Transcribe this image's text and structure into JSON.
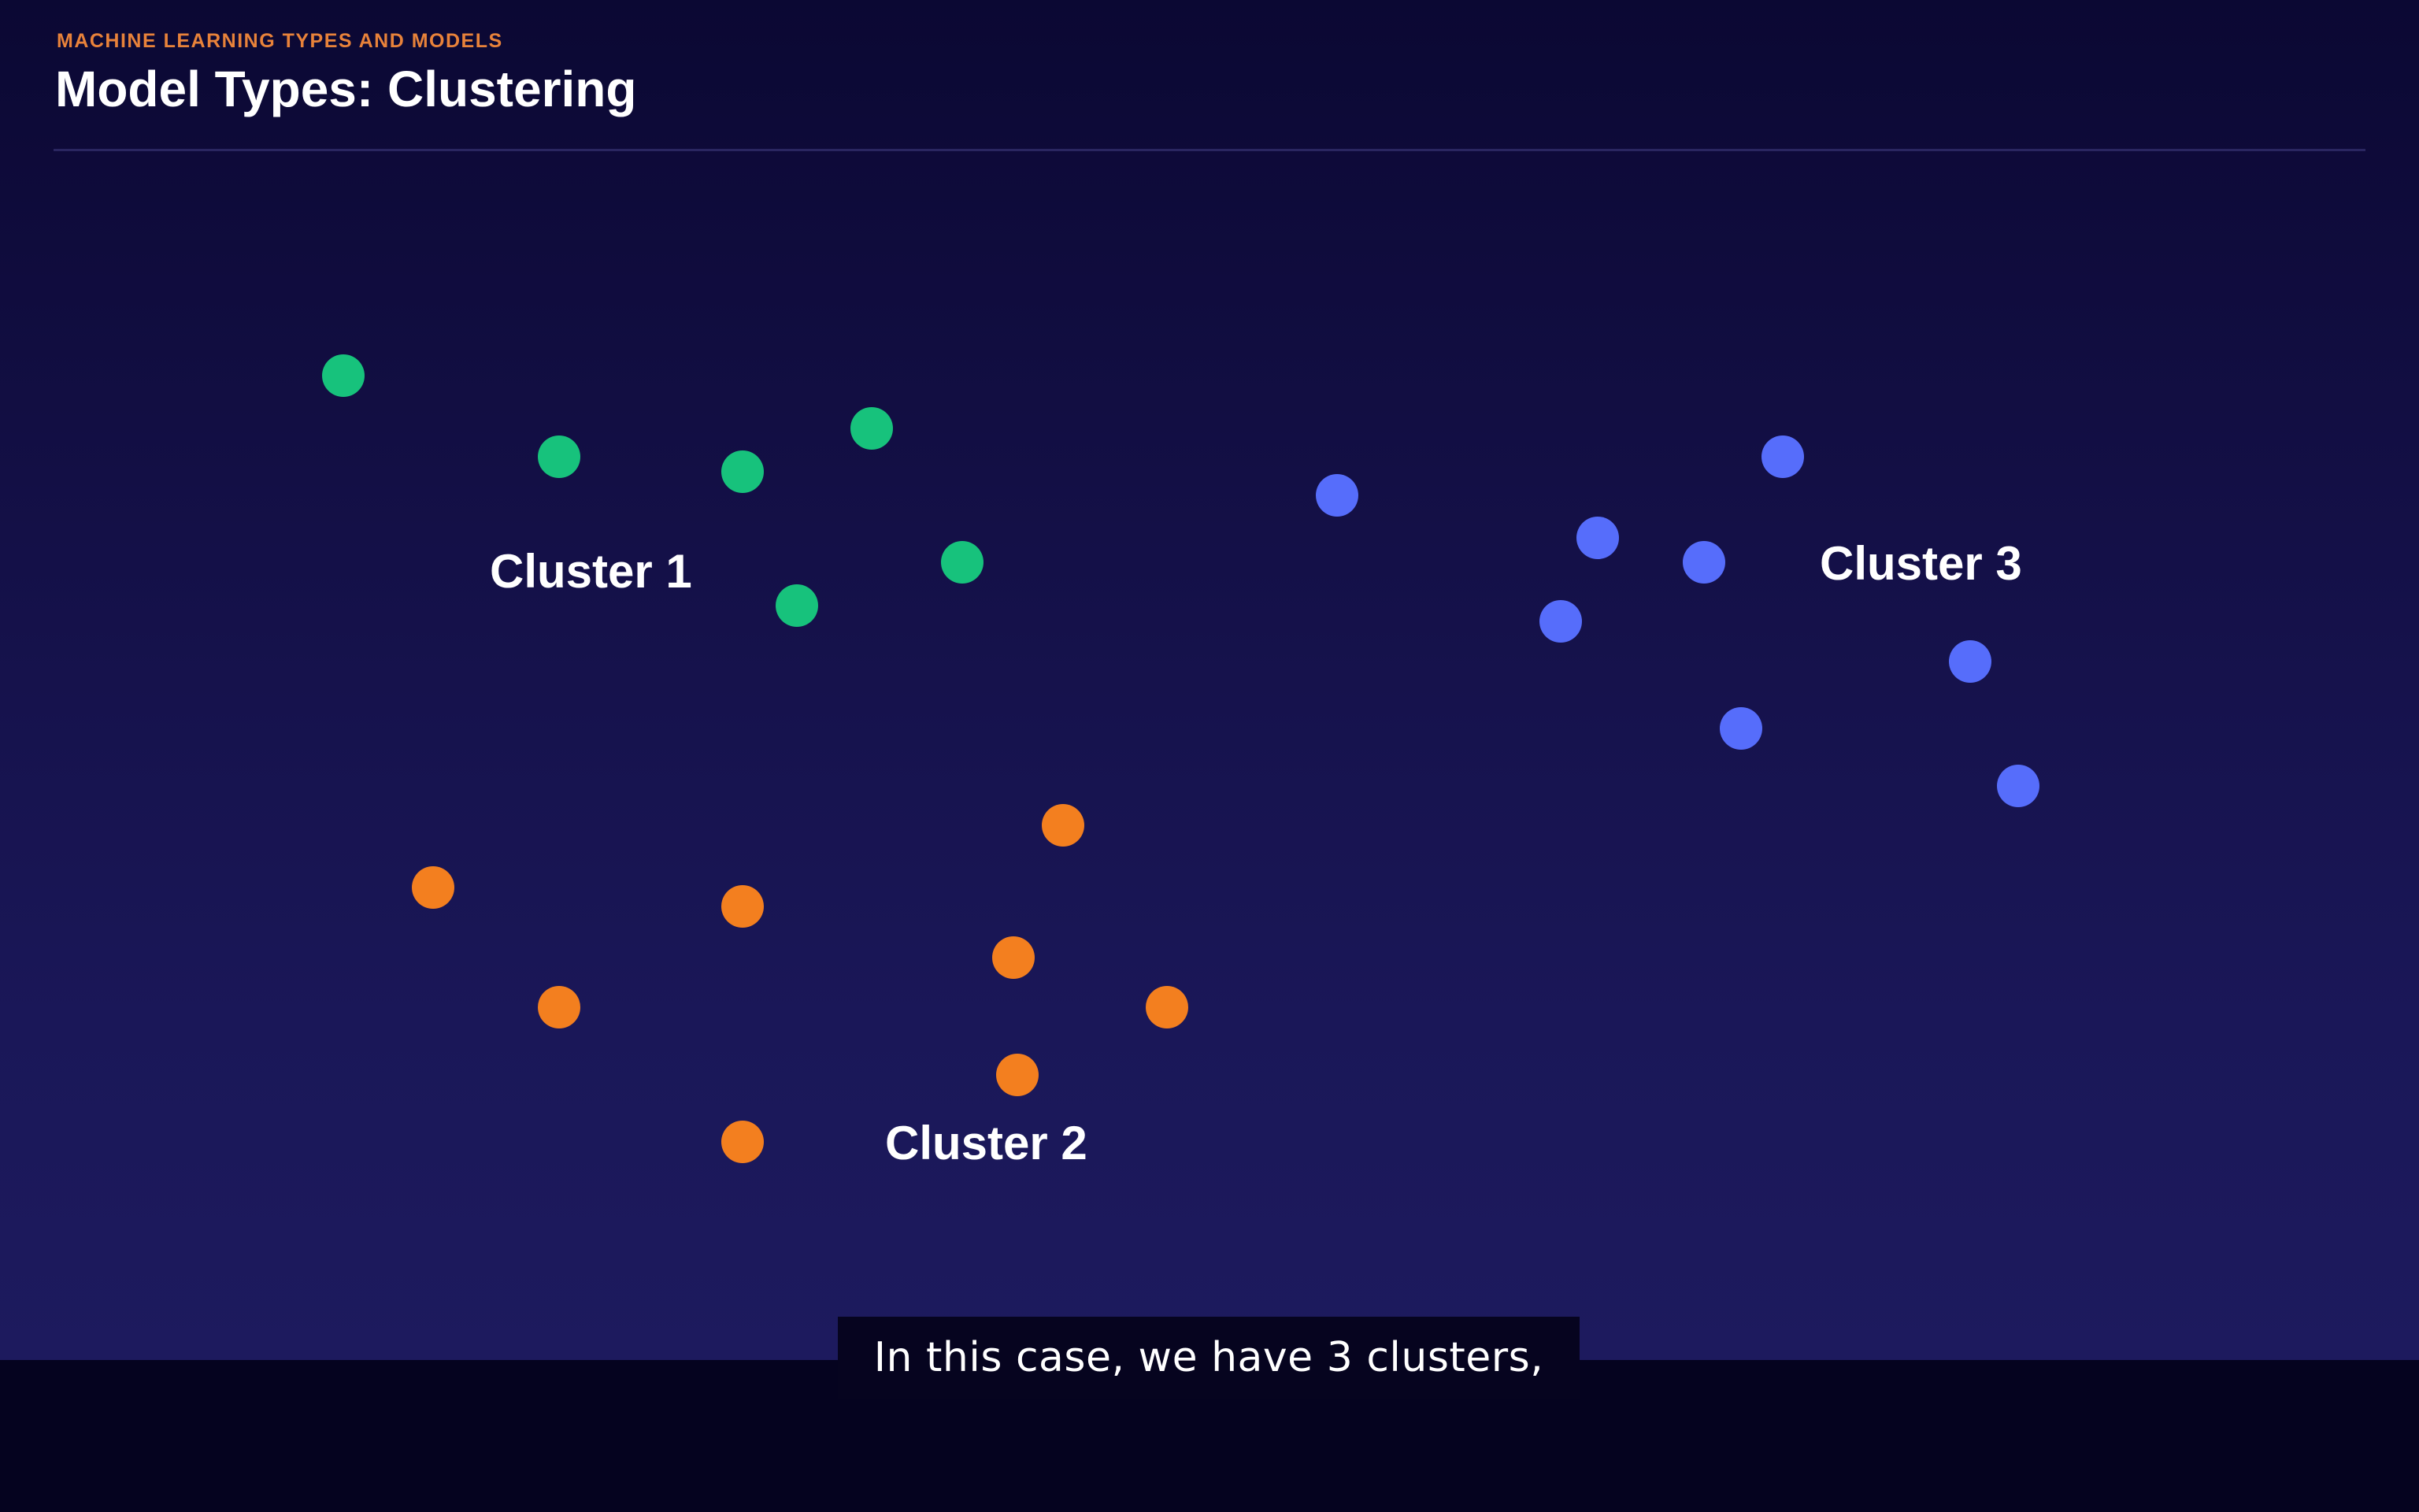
{
  "header": {
    "eyebrow": "MACHINE LEARNING TYPES AND MODELS",
    "title": "Model Types: Clustering"
  },
  "subtitle": "In this case, we have 3 clusters,",
  "colors": {
    "background_top": "#0b0833",
    "background_bottom": "#1d1a5e",
    "eyebrow": "#e8823a",
    "cluster_1": "#17c27c",
    "cluster_2": "#f37f1f",
    "cluster_3": "#566dfb"
  },
  "chart_data": {
    "type": "scatter",
    "title": "",
    "xlabel": "",
    "ylabel": "",
    "grid": false,
    "axes_visible": false,
    "clusters": [
      {
        "label": "Cluster 1",
        "color": "#17c27c",
        "points": [
          [
            436,
            477
          ],
          [
            710,
            580
          ],
          [
            943,
            599
          ],
          [
            1107,
            544
          ],
          [
            1222,
            714
          ],
          [
            1012,
            769
          ]
        ]
      },
      {
        "label": "Cluster 2",
        "color": "#f37f1f",
        "points": [
          [
            550,
            1127
          ],
          [
            943,
            1151
          ],
          [
            1350,
            1048
          ],
          [
            1287,
            1216
          ],
          [
            1482,
            1279
          ],
          [
            710,
            1279
          ],
          [
            1292,
            1365
          ],
          [
            943,
            1450
          ]
        ]
      },
      {
        "label": "Cluster 3",
        "color": "#566dfb",
        "points": [
          [
            1698,
            629
          ],
          [
            2029,
            683
          ],
          [
            2164,
            714
          ],
          [
            2264,
            580
          ],
          [
            1982,
            789
          ],
          [
            2502,
            840
          ],
          [
            2211,
            925
          ],
          [
            2563,
            998
          ]
        ]
      }
    ]
  }
}
